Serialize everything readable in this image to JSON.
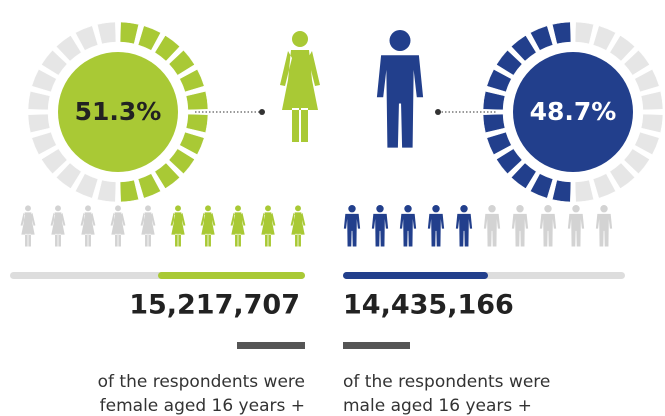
{
  "female": {
    "percent": {
      "value": 51.3,
      "label": "51.3%"
    },
    "count": "15,217,707",
    "caption": [
      "of the respondents were",
      "female aged 16 years +"
    ]
  },
  "male": {
    "percent": {
      "value": 48.7,
      "label": "48.7%"
    },
    "count": "14,435,166",
    "caption": [
      "of the respondents were",
      "male aged 16 years +"
    ]
  }
}
